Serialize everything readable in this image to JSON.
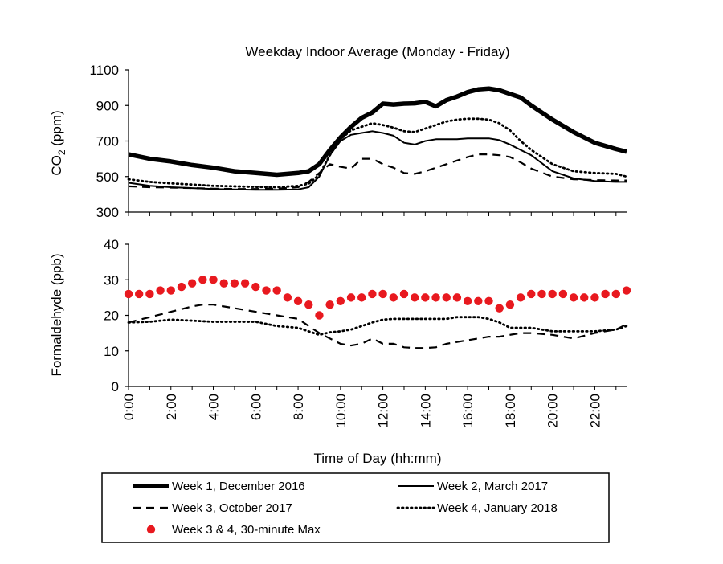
{
  "chart_data": {
    "title": "Weekday Indoor Average (Monday - Friday)",
    "x_axis": {
      "label": "Time of Day (hh:mm)",
      "range_hours": [
        0,
        23.5
      ],
      "tick_labels": [
        "0:00",
        "2:00",
        "4:00",
        "6:00",
        "8:00",
        "10:00",
        "12:00",
        "14:00",
        "16:00",
        "18:00",
        "20:00",
        "22:00"
      ],
      "tick_values": [
        0,
        2,
        4,
        6,
        8,
        10,
        12,
        14,
        16,
        18,
        20,
        22
      ]
    },
    "panels": [
      {
        "type": "line",
        "ylabel_main": "CO",
        "ylabel_sub": "2",
        "ylabel_unit": " (ppm)",
        "ylim": [
          300,
          1100
        ],
        "yticks": [
          300,
          500,
          700,
          900,
          1100
        ],
        "series": [
          {
            "name": "Week 1, December 2016",
            "style": "thick-solid",
            "x": [
              0,
              1,
              2,
              3,
              4,
              5,
              6,
              7,
              8,
              8.5,
              9,
              9.5,
              10,
              10.5,
              11,
              11.5,
              12,
              12.5,
              13,
              13.5,
              14,
              14.5,
              15,
              15.5,
              16,
              16.5,
              17,
              17.5,
              18,
              18.5,
              19,
              20,
              21,
              22,
              23,
              23.5
            ],
            "values": [
              625,
              600,
              585,
              565,
              550,
              530,
              520,
              510,
              520,
              530,
              570,
              650,
              720,
              780,
              830,
              860,
              910,
              905,
              910,
              912,
              920,
              895,
              930,
              950,
              975,
              990,
              995,
              985,
              965,
              945,
              900,
              820,
              750,
              690,
              655,
              640
            ]
          },
          {
            "name": "Week 2, March 2017",
            "style": "solid",
            "x": [
              0,
              1,
              2,
              3,
              4,
              5,
              6,
              7,
              8,
              8.5,
              9,
              9.5,
              10,
              10.5,
              11,
              11.5,
              12,
              12.5,
              13,
              13.5,
              14,
              14.5,
              15,
              15.5,
              16,
              16.5,
              17,
              17.5,
              18,
              18.5,
              19,
              20,
              21,
              22,
              23,
              23.5
            ],
            "values": [
              465,
              448,
              440,
              435,
              430,
              428,
              425,
              425,
              428,
              440,
              500,
              620,
              700,
              735,
              745,
              755,
              745,
              730,
              690,
              680,
              700,
              710,
              710,
              710,
              715,
              715,
              715,
              705,
              680,
              650,
              620,
              530,
              490,
              475,
              470,
              470
            ]
          },
          {
            "name": "Week 3, October 2017",
            "style": "dashed",
            "x": [
              0,
              1,
              2,
              3,
              4,
              5,
              6,
              7,
              8,
              8.5,
              9,
              9.5,
              10,
              10.5,
              11,
              11.5,
              12,
              12.5,
              13,
              13.5,
              14,
              14.5,
              15,
              15.5,
              16,
              16.5,
              17,
              17.5,
              18,
              18.5,
              19,
              20,
              21,
              22,
              23,
              23.5
            ],
            "values": [
              445,
              440,
              438,
              435,
              432,
              430,
              430,
              432,
              440,
              470,
              520,
              570,
              555,
              545,
              600,
              600,
              570,
              550,
              520,
              515,
              530,
              550,
              570,
              590,
              610,
              625,
              625,
              620,
              610,
              580,
              545,
              500,
              485,
              480,
              478,
              478
            ]
          },
          {
            "name": "Week 4, January 2018",
            "style": "dotted",
            "x": [
              0,
              1,
              2,
              3,
              4,
              5,
              6,
              7,
              8,
              8.5,
              9,
              9.5,
              10,
              10.5,
              11,
              11.5,
              12,
              12.5,
              13,
              13.5,
              14,
              14.5,
              15,
              15.5,
              16,
              16.5,
              17,
              17.5,
              18,
              18.5,
              19,
              20,
              21,
              22,
              23,
              23.5
            ],
            "values": [
              485,
              470,
              462,
              455,
              448,
              445,
              442,
              440,
              448,
              460,
              510,
              620,
              710,
              760,
              780,
              800,
              790,
              775,
              755,
              750,
              770,
              790,
              810,
              820,
              825,
              825,
              820,
              800,
              760,
              700,
              650,
              570,
              530,
              520,
              515,
              500
            ]
          }
        ]
      },
      {
        "type": "line",
        "ylabel": "Formaldehyde (ppb)",
        "ylim": [
          0,
          40
        ],
        "yticks": [
          0,
          10,
          20,
          30,
          40
        ],
        "series": [
          {
            "name": "Week 3, October 2017",
            "style": "dashed",
            "x": [
              0,
              1,
              2,
              3,
              3.5,
              4,
              5,
              6,
              7,
              8,
              8.5,
              9,
              9.5,
              10,
              10.5,
              11,
              11.5,
              12,
              12.5,
              13,
              13.5,
              14,
              14.5,
              15,
              15.5,
              16,
              16.5,
              17,
              17.5,
              18,
              18.5,
              19,
              20,
              21,
              22,
              23,
              23.5
            ],
            "values": [
              18,
              19.5,
              21,
              22.5,
              23,
              23,
              22,
              21,
              20,
              19,
              17,
              15,
              13.5,
              12,
              11.5,
              12,
              13.5,
              12,
              12,
              11,
              10.8,
              10.8,
              11,
              12,
              12.5,
              13,
              13.5,
              14,
              14,
              14.5,
              15,
              15,
              14.5,
              13.5,
              15,
              16,
              17.5
            ]
          },
          {
            "name": "Week 4, January 2018",
            "style": "dotted",
            "x": [
              0,
              1,
              2,
              3,
              4,
              5,
              6,
              7,
              8,
              8.5,
              9,
              9.5,
              10,
              10.5,
              11,
              11.5,
              12,
              12.5,
              13,
              13.5,
              14,
              14.5,
              15,
              15.5,
              16,
              16.5,
              17,
              17.5,
              18,
              18.5,
              19,
              20,
              21,
              22,
              23,
              23.5
            ],
            "values": [
              18,
              18.2,
              18.8,
              18.5,
              18.2,
              18.2,
              18.2,
              17,
              16.5,
              15.5,
              14.5,
              15.2,
              15.5,
              16,
              17,
              18,
              18.8,
              19,
              19,
              19,
              19,
              19,
              19,
              19.5,
              19.5,
              19.5,
              19,
              18,
              16.5,
              16.5,
              16.5,
              15.5,
              15.5,
              15.5,
              16,
              17
            ]
          },
          {
            "name": "Week 3 & 4, 30-minute Max",
            "style": "red-dots",
            "x": [
              0,
              0.5,
              1,
              1.5,
              2,
              2.5,
              3,
              3.5,
              4,
              4.5,
              5,
              5.5,
              6,
              6.5,
              7,
              7.5,
              8,
              8.5,
              9,
              9.5,
              10,
              10.5,
              11,
              11.5,
              12,
              12.5,
              13,
              13.5,
              14,
              14.5,
              15,
              15.5,
              16,
              16.5,
              17,
              17.5,
              18,
              18.5,
              19,
              19.5,
              20,
              20.5,
              21,
              21.5,
              22,
              22.5,
              23,
              23.5
            ],
            "values": [
              26,
              26,
              26,
              27,
              27,
              28,
              29,
              30,
              30,
              29,
              29,
              29,
              28,
              27,
              27,
              25,
              24,
              23,
              20,
              23,
              24,
              25,
              25,
              26,
              26,
              25,
              26,
              25,
              25,
              25,
              25,
              25,
              24,
              24,
              24,
              22,
              23,
              25,
              26,
              26,
              26,
              26,
              25,
              25,
              25,
              26,
              26,
              27
            ]
          }
        ]
      }
    ],
    "legend_entries": [
      {
        "label": "Week 1, December 2016",
        "style": "thick-solid"
      },
      {
        "label": "Week 2, March 2017",
        "style": "solid"
      },
      {
        "label": "Week 3, October 2017",
        "style": "dashed"
      },
      {
        "label": "Week 4, January 2018",
        "style": "dotted"
      },
      {
        "label": "Week 3 & 4, 30-minute Max",
        "style": "red-dots"
      }
    ],
    "colors": {
      "lines": "#000000",
      "max_dots": "#e8191f"
    }
  }
}
